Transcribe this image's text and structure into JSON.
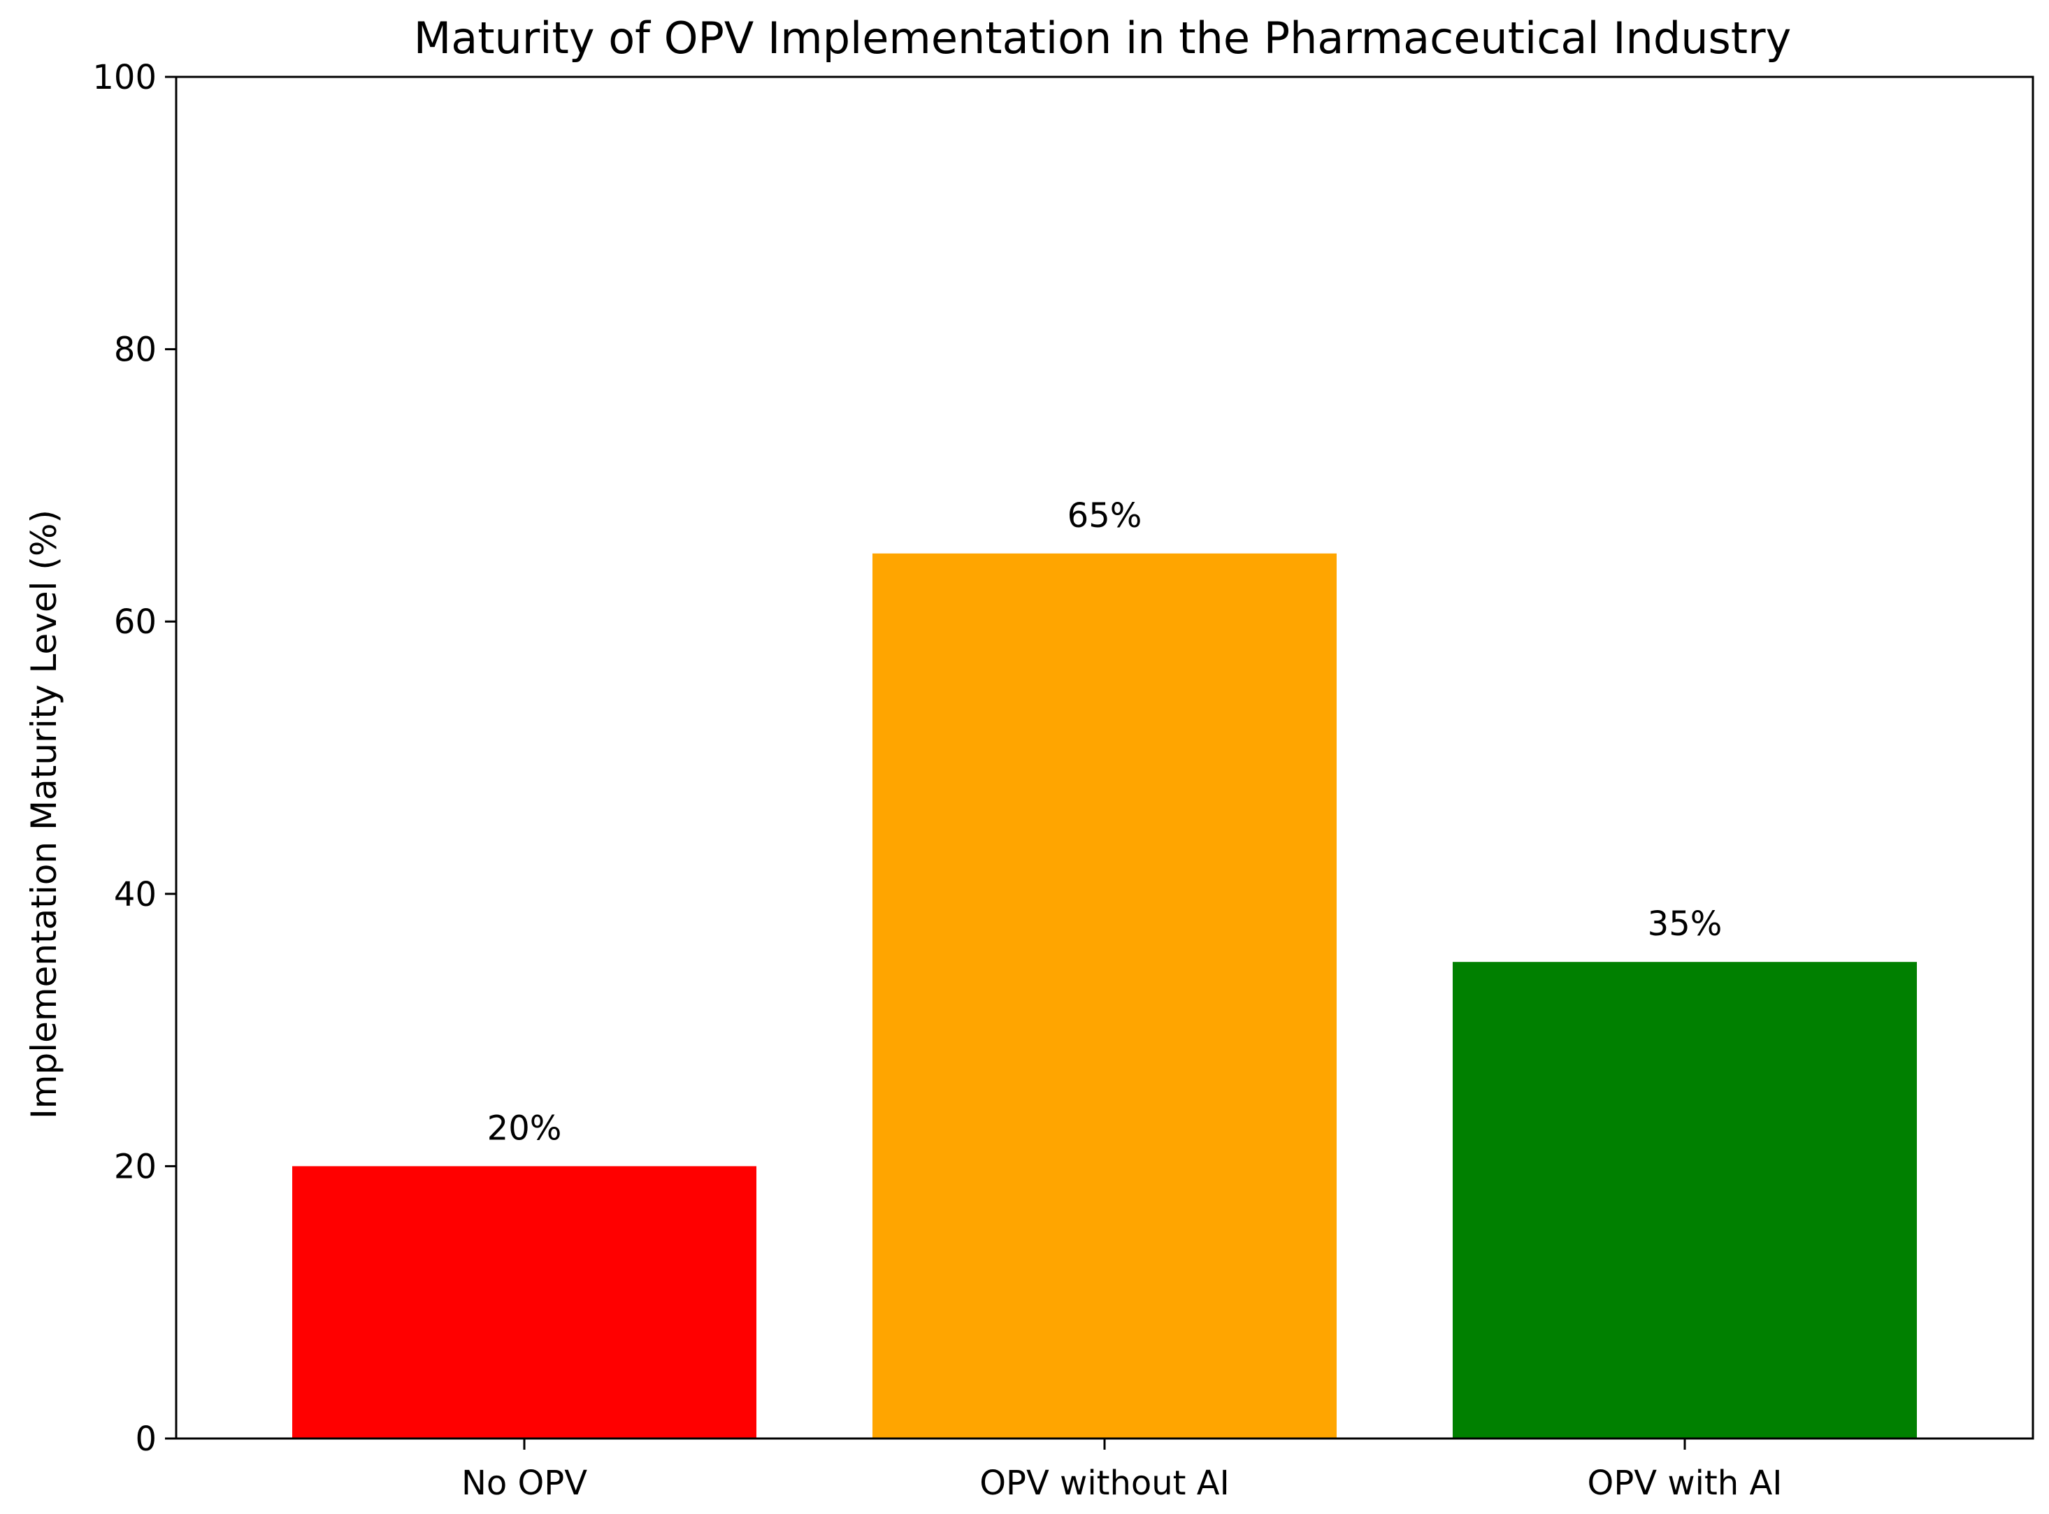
{
  "chart_data": {
    "type": "bar",
    "title": "Maturity of OPV Implementation in the Pharmaceutical Industry",
    "xlabel": "",
    "ylabel": "Implementation Maturity Level (%)",
    "categories": [
      "No OPV",
      "OPV without AI",
      "OPV with AI"
    ],
    "values": [
      20,
      65,
      35
    ],
    "data_labels": [
      "20%",
      "65%",
      "35%"
    ],
    "colors": [
      "#ff0000",
      "#ffa500",
      "#008000"
    ],
    "ylim": [
      0,
      100
    ],
    "yticks": [
      0,
      20,
      40,
      60,
      80,
      100
    ],
    "ytick_labels": [
      "0",
      "20",
      "40",
      "60",
      "80",
      "100"
    ],
    "grid": false,
    "legend": "none"
  }
}
